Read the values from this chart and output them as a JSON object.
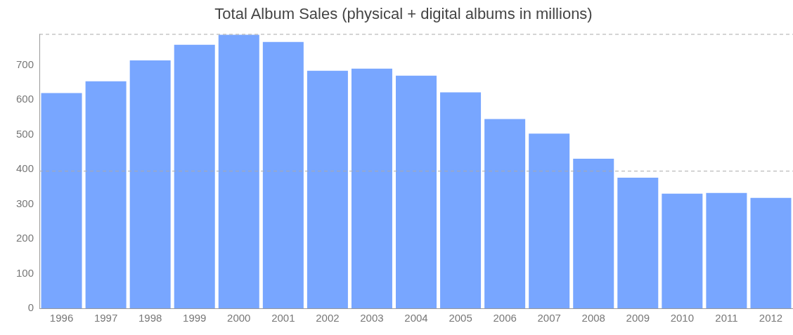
{
  "chart_data": {
    "type": "bar",
    "title": "Total Album Sales (physical + digital albums in millions)",
    "categories": [
      "1996",
      "1997",
      "1998",
      "1999",
      "2000",
      "2001",
      "2002",
      "2003",
      "2004",
      "2005",
      "2006",
      "2007",
      "2008",
      "2009",
      "2010",
      "2011",
      "2012"
    ],
    "values": [
      620,
      654,
      714,
      759,
      788,
      767,
      684,
      690,
      670,
      622,
      545,
      503,
      431,
      376,
      330,
      332,
      318
    ],
    "color": "#78a6ff",
    "ylim": [
      0,
      790
    ],
    "yticks": [
      0,
      100,
      200,
      300,
      400,
      500,
      600,
      700
    ],
    "ref_lines": [
      {
        "axis": "y",
        "value": 395,
        "color": "#aaaaaa",
        "line_style": "dashed"
      }
    ],
    "grid": false,
    "legend": false
  }
}
